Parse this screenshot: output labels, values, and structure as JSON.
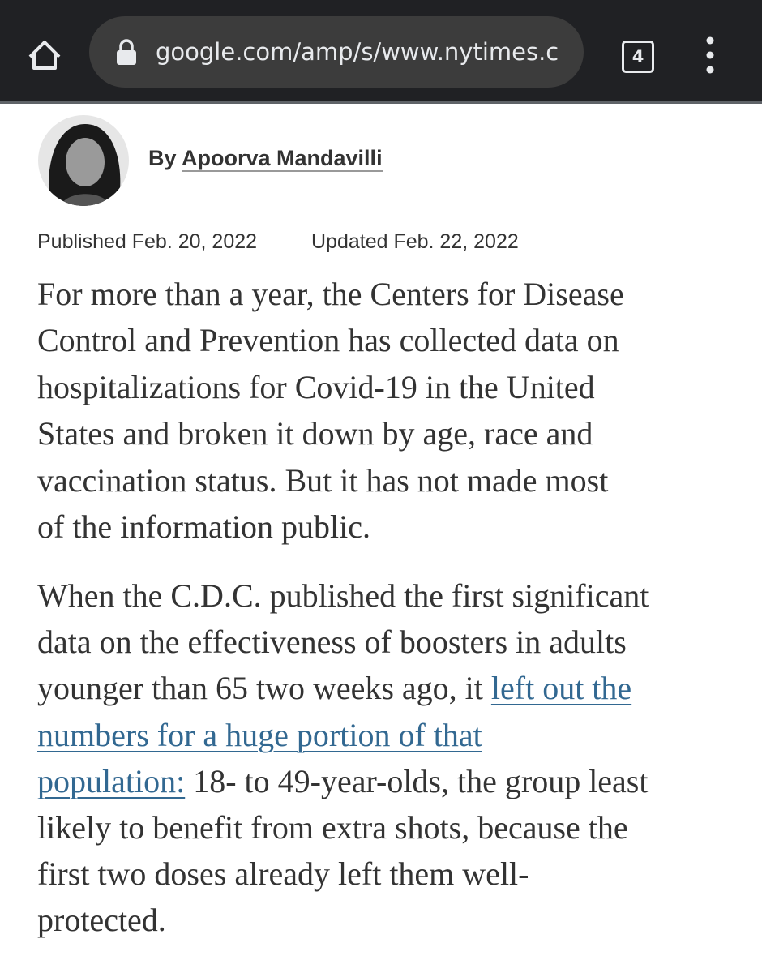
{
  "browser": {
    "url": "google.com/amp/s/www.nytimes.c",
    "tab_count": "4"
  },
  "byline": {
    "prefix": "By",
    "author": "Apoorva Mandavilli"
  },
  "dates": {
    "published": "Published Feb. 20, 2022",
    "updated": "Updated Feb. 22, 2022"
  },
  "article": {
    "paragraphs": [
      {
        "lines": [
          [
            {
              "text": "For more than a year, the Centers for Disease"
            }
          ],
          [
            {
              "text": "Control and Prevention has collected data on"
            }
          ],
          [
            {
              "text": "hospitalizations for Covid-19 in the United"
            }
          ],
          [
            {
              "text": "States and broken it down by age, race and"
            }
          ],
          [
            {
              "text": "vaccination status. But it has not made most"
            }
          ],
          [
            {
              "text": "of the information public."
            }
          ]
        ]
      },
      {
        "lines": [
          [
            {
              "text": "When the C.D.C. published the first significant"
            }
          ],
          [
            {
              "text": "data on the effectiveness of boosters in adults"
            }
          ],
          [
            {
              "text": "younger than 65 two weeks ago, it "
            },
            {
              "text": "left out the",
              "link": true
            }
          ],
          [
            {
              "text": "numbers for a huge portion of that",
              "link": true
            }
          ],
          [
            {
              "text": "population:",
              "link": true
            },
            {
              "text": " 18- to 49-year-olds, the group least"
            }
          ],
          [
            {
              "text": "likely to benefit from extra shots, because the"
            }
          ],
          [
            {
              "text": "first two doses already left them well-"
            }
          ],
          [
            {
              "text": "protected."
            }
          ]
        ]
      }
    ]
  }
}
